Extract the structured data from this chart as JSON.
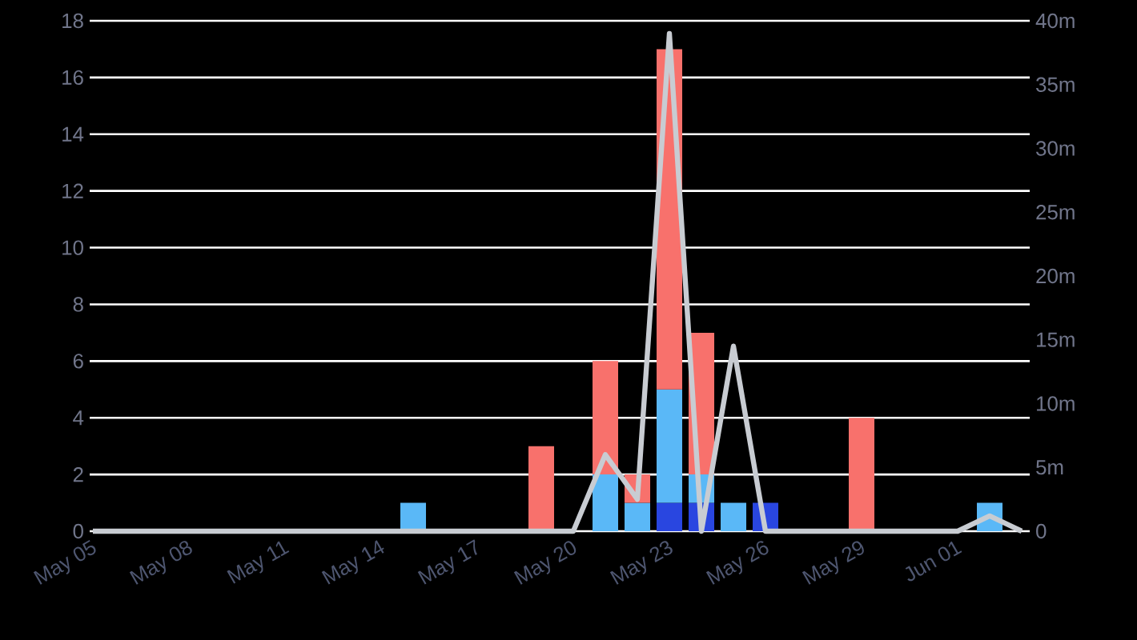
{
  "chart_data": {
    "type": "bar",
    "stacked": true,
    "grid": "y",
    "categories": [
      "May 05",
      null,
      null,
      "May 08",
      null,
      null,
      "May 11",
      null,
      null,
      "May 14",
      null,
      null,
      "May 17",
      null,
      null,
      "May 20",
      null,
      null,
      "May 23",
      null,
      null,
      "May 26",
      null,
      null,
      "May 29",
      null,
      null,
      "Jun 01",
      null,
      null
    ],
    "series": [
      {
        "color": "#2946e0",
        "values": [
          null,
          null,
          null,
          null,
          null,
          null,
          null,
          null,
          null,
          null,
          null,
          null,
          null,
          null,
          null,
          null,
          null,
          null,
          1,
          1,
          null,
          1,
          null,
          null,
          null,
          null,
          null,
          null,
          null,
          null
        ]
      },
      {
        "color": "#5ab8f7",
        "values": [
          null,
          null,
          null,
          null,
          null,
          null,
          null,
          null,
          null,
          null,
          1,
          null,
          null,
          null,
          null,
          null,
          2,
          1,
          4,
          1,
          1,
          null,
          null,
          null,
          null,
          null,
          null,
          null,
          1,
          null
        ]
      },
      {
        "color": "#f8716c",
        "values": [
          null,
          null,
          null,
          null,
          null,
          null,
          null,
          null,
          null,
          null,
          null,
          null,
          null,
          null,
          3,
          null,
          4,
          1,
          12,
          5,
          null,
          null,
          null,
          null,
          4,
          null,
          null,
          null,
          null,
          null
        ]
      },
      {
        "type": "line",
        "axis": "y2",
        "color": "#c8ccd2",
        "values": [
          0,
          0,
          0,
          0,
          0,
          0,
          0,
          0,
          0,
          0,
          0,
          0,
          0,
          0,
          0,
          0,
          6,
          2.5,
          39,
          0,
          14.5,
          0,
          0,
          0,
          0,
          0,
          0,
          0,
          1.2,
          0
        ]
      }
    ],
    "ylim": [
      0,
      18
    ],
    "yticks": [
      0,
      2,
      4,
      6,
      8,
      10,
      12,
      14,
      16,
      18
    ],
    "y2lim": [
      0,
      40
    ],
    "y2ticks": [
      0,
      {
        "value": 5,
        "label": "5m"
      },
      {
        "value": 10,
        "label": "10m"
      },
      {
        "value": 15,
        "label": "15m"
      },
      {
        "value": 20,
        "label": "20m"
      },
      {
        "value": 25,
        "label": "25m"
      },
      {
        "value": 30,
        "label": "30m"
      },
      {
        "value": 35,
        "label": "35m"
      },
      {
        "value": 40,
        "label": "40m"
      }
    ]
  }
}
